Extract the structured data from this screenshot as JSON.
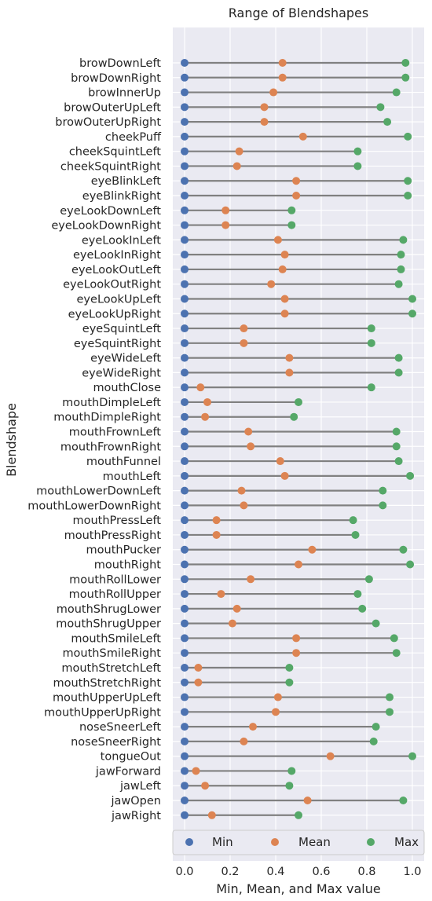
{
  "chart_data": {
    "type": "dumbbell",
    "title": "Range of Blendshapes",
    "xlabel": "Min, Mean, and Max value",
    "ylabel": "Blendshape",
    "xlim": [
      -0.05,
      1.05
    ],
    "xticks": [
      0.0,
      0.2,
      0.4,
      0.6,
      0.8,
      1.0
    ],
    "xtick_labels": [
      "0.0",
      "0.2",
      "0.4",
      "0.6",
      "0.8",
      "1.0"
    ],
    "grid": true,
    "legend_position": "bottom",
    "colors": {
      "background": "#eaeaf2",
      "grid": "#ffffff",
      "line": "#808080",
      "min": "#4c72b0",
      "mean": "#dd8452",
      "max": "#55a868"
    },
    "series_names": [
      "Min",
      "Mean",
      "Max"
    ],
    "categories": [
      "browDownLeft",
      "browDownRight",
      "browInnerUp",
      "browOuterUpLeft",
      "browOuterUpRight",
      "cheekPuff",
      "cheekSquintLeft",
      "cheekSquintRight",
      "eyeBlinkLeft",
      "eyeBlinkRight",
      "eyeLookDownLeft",
      "eyeLookDownRight",
      "eyeLookInLeft",
      "eyeLookInRight",
      "eyeLookOutLeft",
      "eyeLookOutRight",
      "eyeLookUpLeft",
      "eyeLookUpRight",
      "eyeSquintLeft",
      "eyeSquintRight",
      "eyeWideLeft",
      "eyeWideRight",
      "mouthClose",
      "mouthDimpleLeft",
      "mouthDimpleRight",
      "mouthFrownLeft",
      "mouthFrownRight",
      "mouthFunnel",
      "mouthLeft",
      "mouthLowerDownLeft",
      "mouthLowerDownRight",
      "mouthPressLeft",
      "mouthPressRight",
      "mouthPucker",
      "mouthRight",
      "mouthRollLower",
      "mouthRollUpper",
      "mouthShrugLower",
      "mouthShrugUpper",
      "mouthSmileLeft",
      "mouthSmileRight",
      "mouthStretchLeft",
      "mouthStretchRight",
      "mouthUpperUpLeft",
      "mouthUpperUpRight",
      "noseSneerLeft",
      "noseSneerRight",
      "tongueOut",
      "jawForward",
      "jawLeft",
      "jawOpen",
      "jawRight"
    ],
    "min": [
      0,
      0,
      0,
      0,
      0,
      0,
      0,
      0,
      0,
      0,
      0,
      0,
      0,
      0,
      0,
      0,
      0,
      0,
      0,
      0,
      0,
      0,
      0,
      0,
      0,
      0,
      0,
      0,
      0,
      0,
      0,
      0,
      0,
      0,
      0,
      0,
      0,
      0,
      0,
      0,
      0,
      0,
      0,
      0,
      0,
      0,
      0,
      0,
      0,
      0,
      0,
      0
    ],
    "mean": [
      0.43,
      0.43,
      0.39,
      0.35,
      0.35,
      0.52,
      0.24,
      0.23,
      0.49,
      0.49,
      0.18,
      0.18,
      0.41,
      0.44,
      0.43,
      0.38,
      0.44,
      0.44,
      0.26,
      0.26,
      0.46,
      0.46,
      0.07,
      0.1,
      0.09,
      0.28,
      0.29,
      0.42,
      0.44,
      0.25,
      0.26,
      0.14,
      0.14,
      0.56,
      0.5,
      0.29,
      0.16,
      0.23,
      0.21,
      0.49,
      0.49,
      0.06,
      0.06,
      0.41,
      0.4,
      0.3,
      0.26,
      0.64,
      0.05,
      0.09,
      0.54,
      0.12
    ],
    "max": [
      0.97,
      0.97,
      0.93,
      0.86,
      0.89,
      0.98,
      0.76,
      0.76,
      0.98,
      0.98,
      0.47,
      0.47,
      0.96,
      0.95,
      0.95,
      0.94,
      1.0,
      1.0,
      0.82,
      0.82,
      0.94,
      0.94,
      0.82,
      0.5,
      0.48,
      0.93,
      0.93,
      0.94,
      0.99,
      0.87,
      0.87,
      0.74,
      0.75,
      0.96,
      0.99,
      0.81,
      0.76,
      0.78,
      0.84,
      0.92,
      0.93,
      0.46,
      0.46,
      0.9,
      0.9,
      0.84,
      0.83,
      1.0,
      0.47,
      0.46,
      0.96,
      0.5
    ]
  }
}
